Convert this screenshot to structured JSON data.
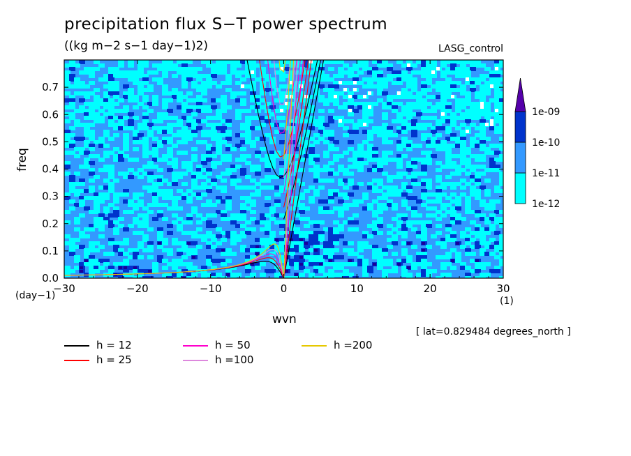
{
  "header": {
    "title": "precipitation flux S−T power spectrum",
    "subtitle": "((kg m−2 s−1 day−1)2)",
    "run_name": "LASG_control",
    "lat_note": "[ lat=0.829484 degrees_north ]"
  },
  "axes": {
    "ylabel": "freq",
    "y_unit": "(day−1)",
    "xlabel": "wvn",
    "x_unit": "(1)"
  },
  "chart_data": {
    "type": "heatmap",
    "title": "precipitation flux S−T power spectrum",
    "xlabel": "wvn",
    "ylabel": "freq",
    "xlim": [
      -30,
      30
    ],
    "ylim": [
      0,
      0.8
    ],
    "xticks": [
      -30,
      -20,
      -10,
      0,
      10,
      20,
      30
    ],
    "xtick_labels": [
      "−30",
      "−20",
      "−10",
      "0",
      "10",
      "20",
      "30"
    ],
    "yticks": [
      0,
      0.1,
      0.2,
      0.3,
      0.4,
      0.5,
      0.6,
      0.7
    ],
    "ytick_labels": [
      "0.0",
      "0.1",
      "0.2",
      "0.3",
      "0.4",
      "0.5",
      "0.6",
      "0.7"
    ],
    "colorbar": {
      "levels": [
        "1e-12",
        "1e-11",
        "1e-10",
        "1e-09"
      ],
      "colors": [
        "#00ffff",
        "#3399ff",
        "#0033cc",
        "#1a0099",
        "#5500aa"
      ],
      "extend": "max"
    },
    "field_colors": {
      "low": "#00ffff",
      "mid": "#3399ff",
      "high": "#0033cc",
      "vhigh": "#1a0099",
      "none": "#ffffff"
    },
    "dispersion_curves": [
      {
        "label": "h = 12",
        "h": 12,
        "color": "#000000"
      },
      {
        "label": "h = 25",
        "h": 25,
        "color": "#ff0000"
      },
      {
        "label": "h = 50",
        "h": 50,
        "color": "#ff00cc"
      },
      {
        "label": "h =100",
        "h": 100,
        "color": "#dd88dd"
      },
      {
        "label": "h =200",
        "h": 200,
        "color": "#e6c800"
      }
    ]
  }
}
